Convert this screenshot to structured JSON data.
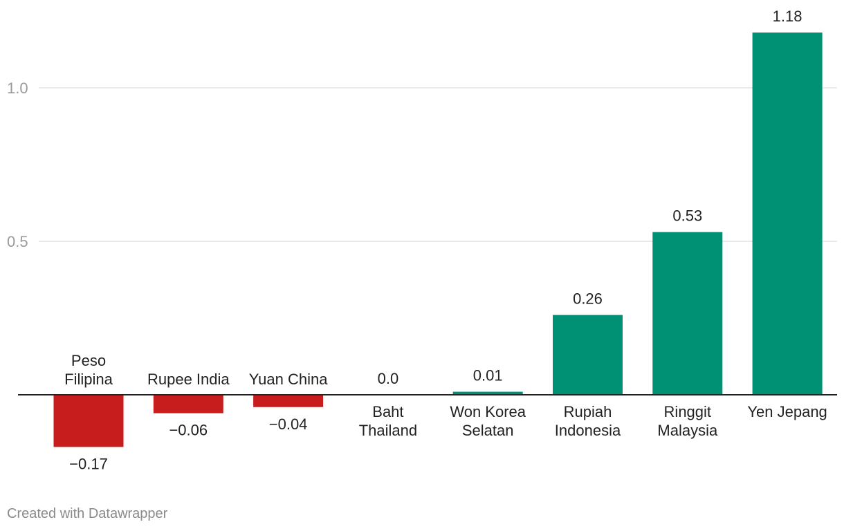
{
  "chart_data": {
    "type": "bar",
    "title": "",
    "xlabel": "",
    "ylabel": "",
    "ylim": [
      -0.2,
      1.2
    ],
    "yticks": [
      {
        "value": 0.5,
        "label": "0.5"
      },
      {
        "value": 1.0,
        "label": "1.0"
      }
    ],
    "categories": [
      [
        "Peso",
        "Filipina"
      ],
      [
        "Rupee India"
      ],
      [
        "Yuan China"
      ],
      [
        "Baht",
        "Thailand"
      ],
      [
        "Won Korea",
        "Selatan"
      ],
      [
        "Rupiah",
        "Indonesia"
      ],
      [
        "Ringgit",
        "Malaysia"
      ],
      [
        "Yen Jepang"
      ]
    ],
    "values": [
      -0.17,
      -0.06,
      -0.04,
      0.0,
      0.01,
      0.26,
      0.53,
      1.18
    ],
    "value_labels": [
      "−0.17",
      "−0.06",
      "−0.04",
      "0.0",
      "0.01",
      "0.26",
      "0.53",
      "1.18"
    ],
    "colors": {
      "positive": "#009175",
      "negative": "#c71e1d"
    }
  },
  "footer": {
    "credit": "Created with Datawrapper"
  }
}
